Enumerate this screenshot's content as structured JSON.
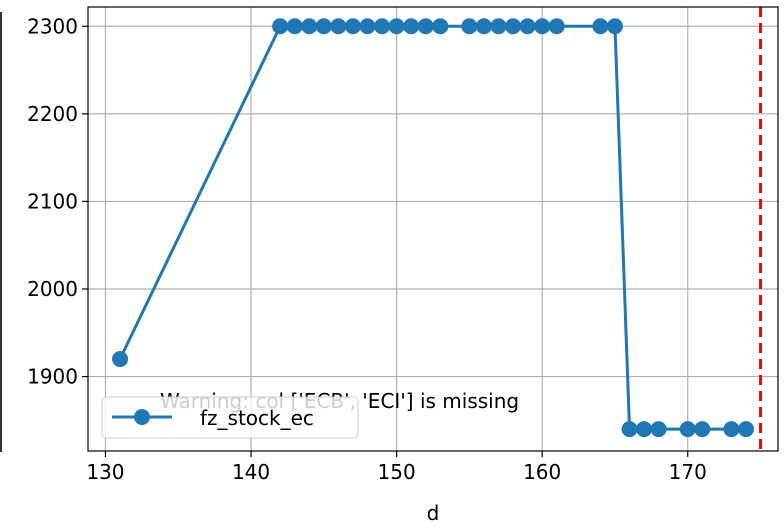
{
  "chart_data": {
    "type": "line",
    "title": "",
    "xlabel": "d",
    "ylabel": "",
    "xlim": [
      128.8,
      176.2
    ],
    "ylim": [
      1815,
      2322
    ],
    "x_ticks": [
      130,
      140,
      150,
      160,
      170
    ],
    "y_ticks": [
      1900,
      2000,
      2100,
      2200,
      2300
    ],
    "x_tick_labels": [
      "130",
      "140",
      "150",
      "160",
      "170"
    ],
    "y_tick_labels": [
      "1900",
      "2000",
      "2100",
      "2200",
      "2300"
    ],
    "grid": true,
    "legend_position": "lower-left",
    "series": [
      {
        "name": "fz_stock_ec",
        "color": "#1f77b4",
        "marker": "circle",
        "x": [
          131,
          142,
          143,
          144,
          145,
          146,
          147,
          148,
          149,
          150,
          151,
          152,
          153,
          155,
          156,
          157,
          158,
          159,
          160,
          161,
          164,
          165,
          166,
          167,
          168,
          170,
          171,
          173,
          174
        ],
        "y": [
          1920,
          2300,
          2300,
          2300,
          2300,
          2300,
          2300,
          2300,
          2300,
          2300,
          2300,
          2300,
          2300,
          2300,
          2300,
          2300,
          2300,
          2300,
          2300,
          2300,
          2300,
          2300,
          1840,
          1840,
          1840,
          1840,
          1840,
          1840,
          1840
        ]
      }
    ],
    "vline": {
      "x": 175,
      "color": "#ff0000",
      "style": "dashed"
    },
    "annotation": "Warning: col ['ECB', 'ECI'] is missing"
  }
}
